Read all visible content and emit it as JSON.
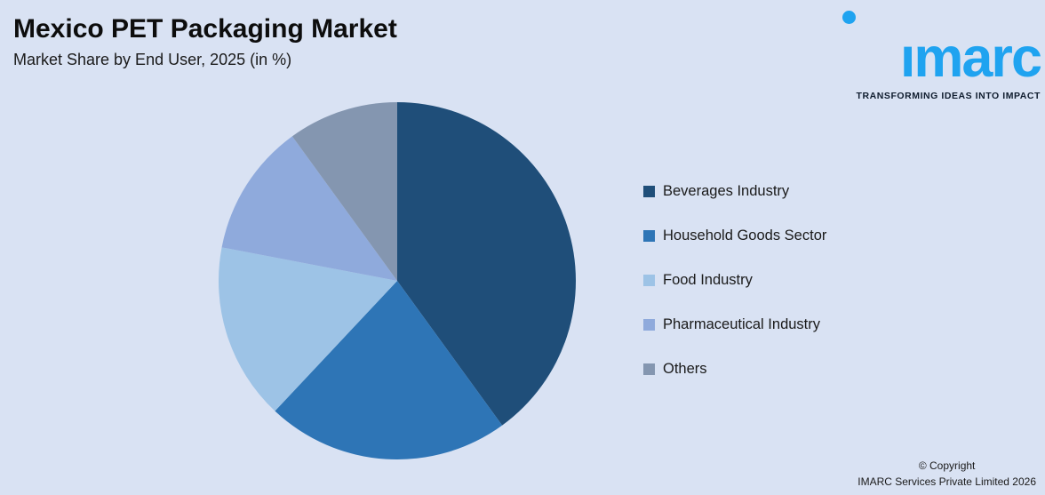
{
  "background_color": "#d9e2f3",
  "header": {
    "title": "Mexico PET Packaging Market",
    "subtitle": "Market Share by End User, 2025 (in %)"
  },
  "logo": {
    "brand": "imarc",
    "tagline": "TRANSFORMING IDEAS INTO IMPACT",
    "brand_color": "#1fa3f0",
    "tagline_color": "#0f1c2e"
  },
  "chart_data": {
    "type": "pie",
    "title": "Mexico PET Packaging Market",
    "subtitle": "Market Share by End User, 2025 (in %)",
    "unit": "%",
    "categories": [
      "Beverages Industry",
      "Household Goods Sector",
      "Food Industry",
      "Pharmaceutical Industry",
      "Others"
    ],
    "values": [
      40,
      22,
      16,
      12,
      10
    ],
    "colors": [
      "#1f4e79",
      "#2e75b6",
      "#9dc3e6",
      "#8faadc",
      "#8496b0"
    ],
    "legend_position": "right",
    "start_angle_deg": 0,
    "direction": "clockwise"
  },
  "footer": {
    "copyright_line1": "© Copyright",
    "copyright_line2": "IMARC Services Private Limited 2026"
  }
}
